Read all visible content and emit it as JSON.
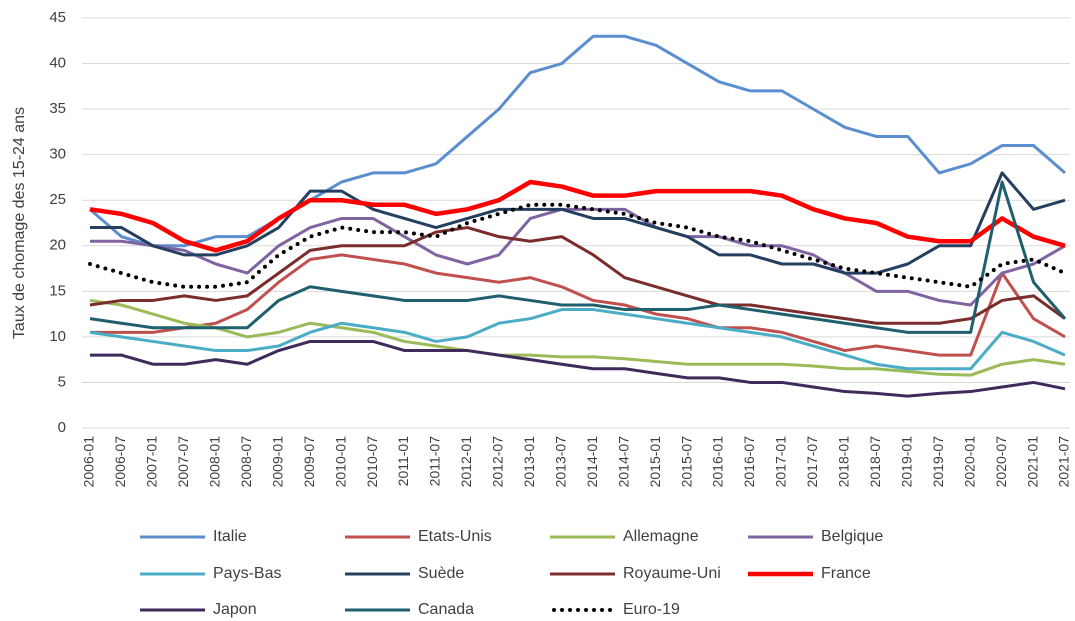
{
  "chart_data": {
    "type": "line",
    "y_label": "Taux de chomage des 15-24 ans",
    "categories": [
      "2006-01",
      "2006-07",
      "2007-01",
      "2007-07",
      "2008-01",
      "2008-07",
      "2009-01",
      "2009-07",
      "2010-01",
      "2010-07",
      "2011-01",
      "2011-07",
      "2012-01",
      "2012-07",
      "2013-01",
      "2013-07",
      "2014-01",
      "2014-07",
      "2015-01",
      "2015-07",
      "2016-01",
      "2016-07",
      "2017-01",
      "2017-07",
      "2018-01",
      "2018-07",
      "2019-01",
      "2019-07",
      "2020-01",
      "2020-07",
      "2021-01",
      "2021-07"
    ],
    "ylim": [
      0,
      45
    ],
    "yticks": [
      0,
      5,
      10,
      15,
      20,
      25,
      30,
      35,
      40,
      45
    ],
    "grid": true,
    "series": [
      {
        "name": "Italie",
        "color": "#5b8ecf",
        "values": [
          24,
          21,
          20,
          20,
          21,
          21,
          23,
          25,
          27,
          28,
          28,
          29,
          32,
          35,
          39,
          40,
          43,
          43,
          42,
          40,
          38,
          37,
          37,
          35,
          33,
          32,
          32,
          28,
          29,
          31,
          31,
          28
        ]
      },
      {
        "name": "Etats-Unis",
        "color": "#c0504d",
        "values": [
          10.5,
          10.5,
          10.5,
          11,
          11.5,
          13,
          16,
          18.5,
          19,
          18.5,
          18,
          17,
          16.5,
          16,
          16.5,
          15.5,
          14,
          13.5,
          12.5,
          12,
          11,
          11,
          10.5,
          9.5,
          8.5,
          9,
          8.5,
          8,
          8,
          17,
          12,
          10
        ]
      },
      {
        "name": "Allemagne",
        "color": "#9bbb59",
        "values": [
          14,
          13.5,
          12.5,
          11.5,
          11,
          10,
          10.5,
          11.5,
          11,
          10.5,
          9.5,
          9,
          8.5,
          8,
          8,
          7.8,
          7.8,
          7.6,
          7.3,
          7,
          7,
          7,
          7,
          6.8,
          6.5,
          6.5,
          6.2,
          5.9,
          5.8,
          7,
          7.5,
          7
        ]
      },
      {
        "name": "Belgique",
        "color": "#8064a2",
        "values": [
          20.5,
          20.5,
          20,
          19.5,
          18,
          17,
          20,
          22,
          23,
          23,
          21,
          19,
          18,
          19,
          23,
          24,
          24,
          24,
          22,
          21,
          21,
          20,
          20,
          19,
          17,
          15,
          15,
          14,
          13.5,
          17,
          18,
          20
        ]
      },
      {
        "name": "Pays-Bas",
        "color": "#4bacc6",
        "values": [
          10.5,
          10,
          9.5,
          9,
          8.5,
          8.5,
          9,
          10.5,
          11.5,
          11,
          10.5,
          9.5,
          10,
          11.5,
          12,
          13,
          13,
          12.5,
          12,
          11.5,
          11,
          10.5,
          10,
          9,
          8,
          7,
          6.5,
          6.5,
          6.5,
          10.5,
          9.5,
          8
        ]
      },
      {
        "name": "Suède",
        "color": "#243f60",
        "values": [
          22,
          22,
          20,
          19,
          19,
          20,
          22,
          26,
          26,
          24,
          23,
          22,
          23,
          24,
          24,
          24,
          23,
          23,
          22,
          21,
          19,
          19,
          18,
          18,
          17,
          17,
          18,
          20,
          20,
          28,
          24,
          25
        ]
      },
      {
        "name": "Royaume-Uni",
        "color": "#7b2c2c",
        "values": [
          13.5,
          14,
          14,
          14.5,
          14,
          14.5,
          17,
          19.5,
          20,
          20,
          20,
          21.5,
          22,
          21,
          20.5,
          21,
          19,
          16.5,
          15.5,
          14.5,
          13.5,
          13.5,
          13,
          12.5,
          12,
          11.5,
          11.5,
          11.5,
          12,
          14,
          14.5,
          12
        ]
      },
      {
        "name": "France",
        "color": "#ff0000",
        "bold": true,
        "values": [
          24,
          23.5,
          22.5,
          20.5,
          19.5,
          20.5,
          23,
          25,
          25,
          24.5,
          24.5,
          23.5,
          24,
          25,
          27,
          26.5,
          25.5,
          25.5,
          26,
          26,
          26,
          26,
          25.5,
          24,
          23,
          22.5,
          21,
          20.5,
          20.5,
          23,
          21,
          20
        ]
      },
      {
        "name": "Japon",
        "color": "#3f2a5c",
        "values": [
          8,
          8,
          7,
          7,
          7.5,
          7,
          8.5,
          9.5,
          9.5,
          9.5,
          8.5,
          8.5,
          8.5,
          8,
          7.5,
          7,
          6.5,
          6.5,
          6,
          5.5,
          5.5,
          5,
          5,
          4.5,
          4,
          3.8,
          3.5,
          3.8,
          4,
          4.5,
          5,
          4.3
        ]
      },
      {
        "name": "Canada",
        "color": "#205f6e",
        "values": [
          12,
          11.5,
          11,
          11,
          11,
          11,
          14,
          15.5,
          15,
          14.5,
          14,
          14,
          14,
          14.5,
          14,
          13.5,
          13.5,
          13,
          13,
          13,
          13.5,
          13,
          12.5,
          12,
          11.5,
          11,
          10.5,
          10.5,
          10.5,
          27,
          16,
          12
        ]
      },
      {
        "name": "Euro-19",
        "color": "#000000",
        "dash": "dotted",
        "values": [
          18,
          17,
          16,
          15.5,
          15.5,
          16,
          19,
          21,
          22,
          21.5,
          21.5,
          21,
          22.5,
          23.5,
          24.5,
          24.5,
          24,
          23.5,
          22.5,
          22,
          21,
          20.5,
          19.5,
          18.5,
          17.5,
          17,
          16.5,
          16,
          15.5,
          18,
          18.5,
          17
        ]
      }
    ]
  }
}
